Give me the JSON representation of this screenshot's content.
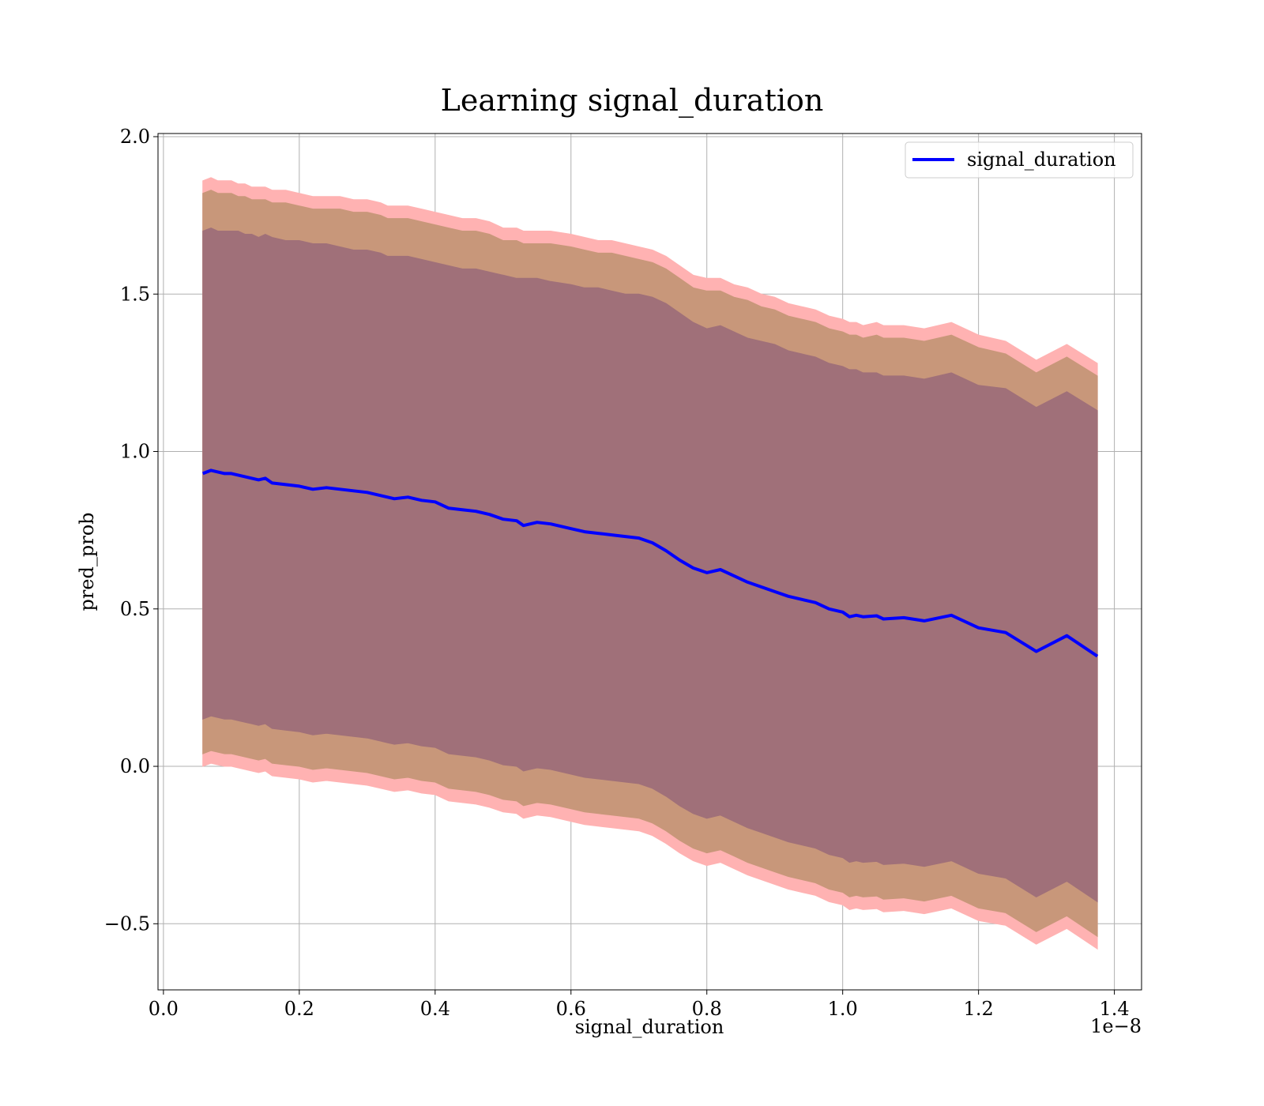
{
  "chart_data": {
    "type": "line",
    "title": "Learning signal_duration",
    "xlabel": "signal_duration",
    "ylabel": "pred_prob",
    "x_offset_label": "1e−8",
    "xlim": [
      -8e-11,
      1.44e-08
    ],
    "ylim": [
      -0.71,
      2.01
    ],
    "x_ticks": [
      0.0,
      2e-09,
      4e-09,
      6e-09,
      8e-09,
      1e-08,
      1.2e-08,
      1.4e-08
    ],
    "x_tick_labels": [
      "0.0",
      "0.2",
      "0.4",
      "0.6",
      "0.8",
      "1.0",
      "1.2",
      "1.4"
    ],
    "y_ticks": [
      -0.5,
      0.0,
      0.5,
      1.0,
      1.5,
      2.0
    ],
    "y_tick_labels": [
      "−0.5",
      "0.0",
      "0.5",
      "1.0",
      "1.5",
      "2.0"
    ],
    "grid": true,
    "legend_position": "top-right",
    "colors": {
      "line": "#0000ff",
      "band_outer": "#ffb2b2",
      "band_middle": "#c8977a",
      "band_inner": "#a07079",
      "grid": "#b0b0b0"
    },
    "series": [
      {
        "name": "signal_duration",
        "x": [
          5.8e-10,
          7e-10,
          8e-10,
          9e-10,
          1e-09,
          1.1e-09,
          1.2e-09,
          1.3e-09,
          1.4e-09,
          1.5e-09,
          1.6e-09,
          1.8e-09,
          2e-09,
          2.2e-09,
          2.4e-09,
          2.6e-09,
          2.8e-09,
          3e-09,
          3.2e-09,
          3.3e-09,
          3.4e-09,
          3.6e-09,
          3.8e-09,
          4e-09,
          4.2e-09,
          4.4e-09,
          4.6e-09,
          4.8e-09,
          5e-09,
          5.2e-09,
          5.3e-09,
          5.5e-09,
          5.7e-09,
          6e-09,
          6.2e-09,
          6.4e-09,
          6.6e-09,
          6.8e-09,
          7e-09,
          7.2e-09,
          7.4e-09,
          7.6e-09,
          7.8e-09,
          8e-09,
          8.2e-09,
          8.4e-09,
          8.6e-09,
          8.8e-09,
          9e-09,
          9.2e-09,
          9.4e-09,
          9.6e-09,
          9.8e-09,
          1e-08,
          1.01e-08,
          1.02e-08,
          1.03e-08,
          1.05e-08,
          1.06e-08,
          1.09e-08,
          1.12e-08,
          1.16e-08,
          1.2e-08,
          1.24e-08,
          1.285e-08,
          1.33e-08,
          1.375e-08
        ],
        "y": [
          0.93,
          0.94,
          0.935,
          0.93,
          0.93,
          0.925,
          0.92,
          0.915,
          0.91,
          0.915,
          0.9,
          0.895,
          0.89,
          0.88,
          0.885,
          0.88,
          0.875,
          0.87,
          0.86,
          0.855,
          0.85,
          0.855,
          0.845,
          0.84,
          0.82,
          0.815,
          0.81,
          0.8,
          0.785,
          0.78,
          0.765,
          0.775,
          0.77,
          0.755,
          0.745,
          0.74,
          0.735,
          0.73,
          0.725,
          0.71,
          0.685,
          0.655,
          0.63,
          0.615,
          0.625,
          0.605,
          0.585,
          0.57,
          0.555,
          0.54,
          0.53,
          0.52,
          0.5,
          0.49,
          0.475,
          0.48,
          0.475,
          0.478,
          0.468,
          0.472,
          0.462,
          0.48,
          0.44,
          0.425,
          0.365,
          0.415,
          0.35
        ],
        "band_inner_upper": [
          1.7,
          1.71,
          1.7,
          1.7,
          1.7,
          1.7,
          1.69,
          1.69,
          1.68,
          1.69,
          1.68,
          1.67,
          1.67,
          1.66,
          1.66,
          1.65,
          1.64,
          1.64,
          1.63,
          1.62,
          1.62,
          1.62,
          1.61,
          1.6,
          1.59,
          1.58,
          1.58,
          1.57,
          1.56,
          1.55,
          1.55,
          1.55,
          1.54,
          1.53,
          1.52,
          1.52,
          1.51,
          1.5,
          1.5,
          1.49,
          1.47,
          1.44,
          1.41,
          1.39,
          1.4,
          1.38,
          1.36,
          1.35,
          1.34,
          1.32,
          1.31,
          1.3,
          1.28,
          1.27,
          1.26,
          1.26,
          1.25,
          1.25,
          1.24,
          1.24,
          1.23,
          1.25,
          1.21,
          1.2,
          1.14,
          1.19,
          1.13
        ],
        "band_inner_lower": [
          0.15,
          0.16,
          0.155,
          0.15,
          0.15,
          0.145,
          0.14,
          0.135,
          0.13,
          0.135,
          0.12,
          0.115,
          0.11,
          0.1,
          0.105,
          0.1,
          0.095,
          0.09,
          0.08,
          0.075,
          0.07,
          0.075,
          0.065,
          0.06,
          0.04,
          0.035,
          0.03,
          0.02,
          0.005,
          0.0,
          -0.015,
          -0.005,
          -0.01,
          -0.025,
          -0.035,
          -0.04,
          -0.045,
          -0.05,
          -0.055,
          -0.07,
          -0.095,
          -0.125,
          -0.15,
          -0.165,
          -0.155,
          -0.175,
          -0.195,
          -0.21,
          -0.225,
          -0.24,
          -0.25,
          -0.26,
          -0.28,
          -0.29,
          -0.305,
          -0.3,
          -0.305,
          -0.302,
          -0.312,
          -0.308,
          -0.318,
          -0.3,
          -0.34,
          -0.355,
          -0.415,
          -0.365,
          -0.43
        ],
        "band_middle_upper": [
          1.82,
          1.83,
          1.82,
          1.82,
          1.82,
          1.81,
          1.81,
          1.8,
          1.8,
          1.8,
          1.79,
          1.79,
          1.78,
          1.77,
          1.77,
          1.77,
          1.76,
          1.76,
          1.75,
          1.74,
          1.74,
          1.74,
          1.73,
          1.72,
          1.71,
          1.7,
          1.7,
          1.69,
          1.67,
          1.67,
          1.66,
          1.66,
          1.66,
          1.65,
          1.64,
          1.63,
          1.63,
          1.62,
          1.61,
          1.6,
          1.58,
          1.55,
          1.52,
          1.51,
          1.51,
          1.49,
          1.48,
          1.46,
          1.45,
          1.43,
          1.42,
          1.41,
          1.39,
          1.38,
          1.37,
          1.37,
          1.36,
          1.37,
          1.36,
          1.36,
          1.35,
          1.37,
          1.33,
          1.31,
          1.25,
          1.3,
          1.24
        ],
        "band_middle_lower": [
          0.04,
          0.05,
          0.045,
          0.04,
          0.04,
          0.035,
          0.03,
          0.025,
          0.02,
          0.025,
          0.01,
          0.005,
          0.0,
          -0.01,
          -0.005,
          -0.01,
          -0.015,
          -0.02,
          -0.03,
          -0.035,
          -0.04,
          -0.035,
          -0.045,
          -0.05,
          -0.07,
          -0.075,
          -0.08,
          -0.09,
          -0.105,
          -0.11,
          -0.125,
          -0.115,
          -0.12,
          -0.135,
          -0.145,
          -0.15,
          -0.155,
          -0.16,
          -0.165,
          -0.18,
          -0.205,
          -0.235,
          -0.26,
          -0.275,
          -0.265,
          -0.285,
          -0.305,
          -0.32,
          -0.335,
          -0.35,
          -0.36,
          -0.37,
          -0.39,
          -0.4,
          -0.415,
          -0.41,
          -0.415,
          -0.412,
          -0.422,
          -0.418,
          -0.428,
          -0.41,
          -0.45,
          -0.465,
          -0.525,
          -0.475,
          -0.54
        ],
        "band_outer_upper": [
          1.86,
          1.87,
          1.86,
          1.86,
          1.86,
          1.85,
          1.85,
          1.84,
          1.84,
          1.84,
          1.83,
          1.83,
          1.82,
          1.81,
          1.81,
          1.81,
          1.8,
          1.8,
          1.79,
          1.78,
          1.78,
          1.78,
          1.77,
          1.76,
          1.75,
          1.74,
          1.74,
          1.73,
          1.71,
          1.71,
          1.7,
          1.7,
          1.7,
          1.69,
          1.68,
          1.67,
          1.67,
          1.66,
          1.65,
          1.64,
          1.62,
          1.59,
          1.56,
          1.55,
          1.55,
          1.53,
          1.52,
          1.5,
          1.49,
          1.47,
          1.46,
          1.45,
          1.43,
          1.42,
          1.41,
          1.41,
          1.4,
          1.41,
          1.4,
          1.4,
          1.39,
          1.41,
          1.37,
          1.35,
          1.29,
          1.34,
          1.28
        ],
        "band_outer_lower": [
          0.0,
          0.01,
          0.005,
          0.0,
          0.0,
          -0.005,
          -0.01,
          -0.015,
          -0.02,
          -0.015,
          -0.03,
          -0.035,
          -0.04,
          -0.05,
          -0.045,
          -0.05,
          -0.055,
          -0.06,
          -0.07,
          -0.075,
          -0.08,
          -0.075,
          -0.085,
          -0.09,
          -0.11,
          -0.115,
          -0.12,
          -0.13,
          -0.145,
          -0.15,
          -0.165,
          -0.155,
          -0.16,
          -0.175,
          -0.185,
          -0.19,
          -0.195,
          -0.2,
          -0.205,
          -0.22,
          -0.245,
          -0.275,
          -0.3,
          -0.315,
          -0.305,
          -0.325,
          -0.345,
          -0.36,
          -0.375,
          -0.39,
          -0.4,
          -0.41,
          -0.43,
          -0.44,
          -0.455,
          -0.45,
          -0.455,
          -0.452,
          -0.462,
          -0.458,
          -0.468,
          -0.45,
          -0.49,
          -0.505,
          -0.565,
          -0.515,
          -0.58
        ]
      }
    ]
  }
}
